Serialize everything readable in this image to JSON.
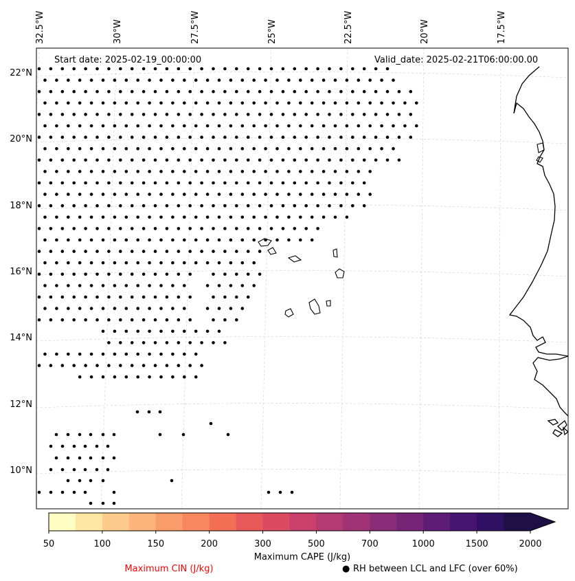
{
  "map": {
    "start_date": "Start date: 2025-02-19_00:00:00",
    "valid_date": "Valid_date: 2025-02-21T06:00:00.00",
    "lon_labels": [
      "32.5°W",
      "30°W",
      "27.5°W",
      "25°W",
      "22.5°W",
      "20°W",
      "17.5°W"
    ],
    "lat_labels": [
      "22°N",
      "20°N",
      "18°N",
      "16°N",
      "14°N",
      "12°N",
      "10°N"
    ],
    "dots_legend": "RH between LCL and LFC (over 60%)",
    "dots_legend_symbol": "●"
  },
  "colorbar": {
    "title": "Maximum CAPE (J/kg)",
    "ticks": [
      "50",
      "100",
      "150",
      "200",
      "300",
      "500",
      "700",
      "1000",
      "1500",
      "2000"
    ],
    "extend": "max",
    "colors": [
      "#fffdc2",
      "#fee6a3",
      "#fdcc8c",
      "#fcb47a",
      "#fb9d6a",
      "#f8875f",
      "#f37057",
      "#e9595a",
      "#dc4a62",
      "#c9406c",
      "#b43a72",
      "#9f3375",
      "#8a2c78",
      "#752478",
      "#5f1c76",
      "#461471",
      "#301063",
      "#1e0f46",
      "#1e0f46"
    ]
  },
  "cin_legend": {
    "label": "Maximum CIN (J/kg)",
    "color": "#ff0000"
  }
}
